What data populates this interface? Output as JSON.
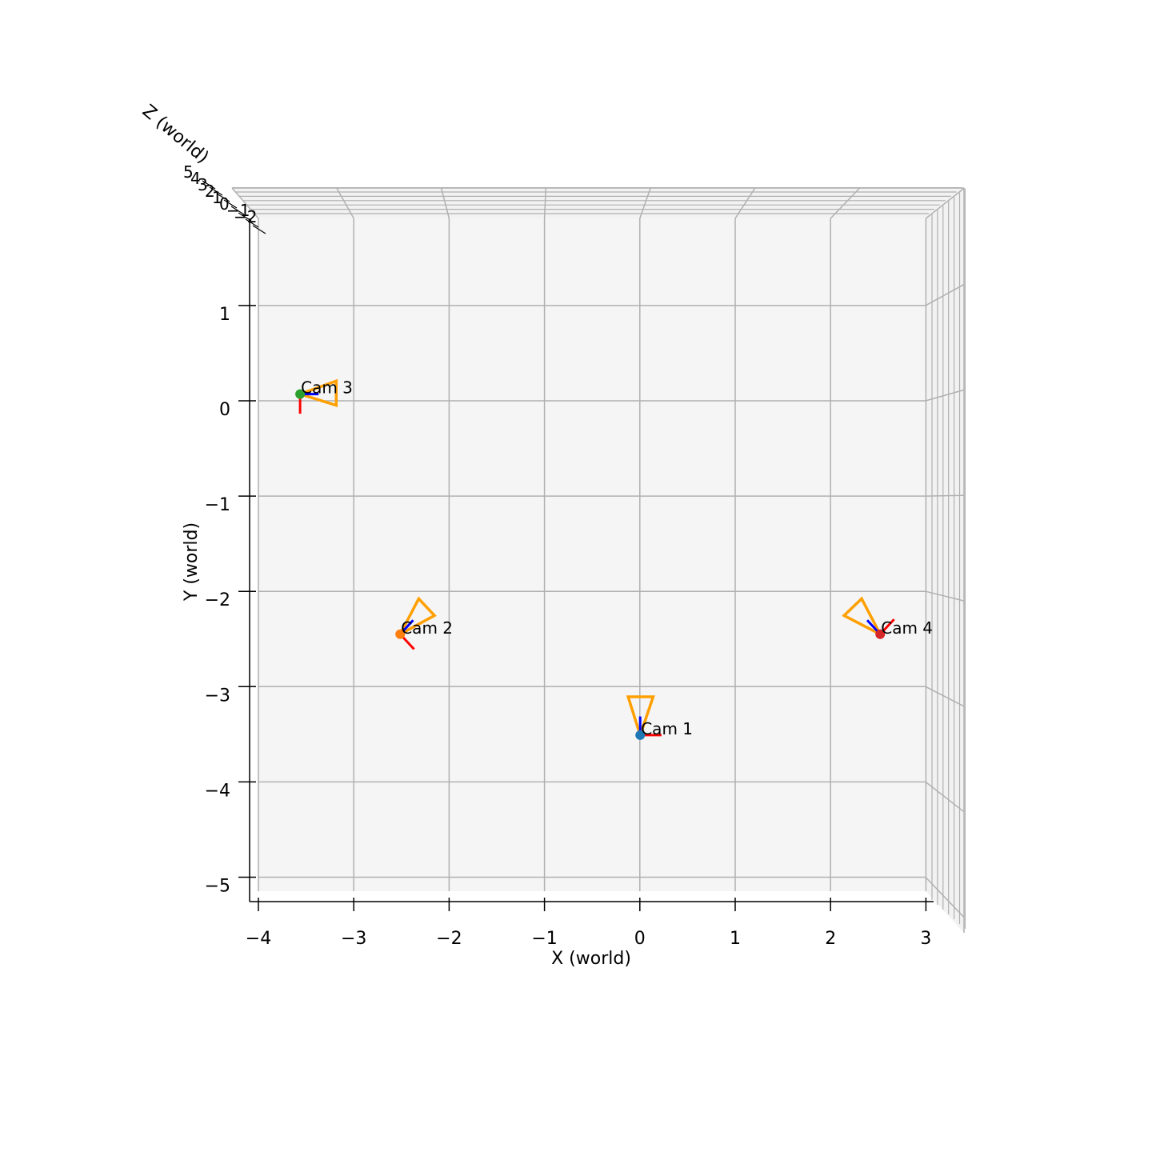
{
  "chart_data": {
    "type": "scatter",
    "title": "",
    "xlabel": "X (world)",
    "ylabel": "Y (world)",
    "zlabel": "Z (world)",
    "xlim": [
      -4.1,
      3.1
    ],
    "ylim": [
      -5.25,
      1.95
    ],
    "xticks": [
      "−4",
      "−3",
      "−2",
      "−1",
      "0",
      "1",
      "2",
      "3"
    ],
    "yticks": [
      "−5",
      "−4",
      "−3",
      "−2",
      "−1",
      "0",
      "1"
    ],
    "zticks": [
      "5",
      "4",
      "3",
      "2",
      "1",
      "0",
      "−1",
      "−2"
    ],
    "grid": true,
    "view": "top-down (looking along −Z)",
    "frustum_color": "#ff9f00",
    "axis_colors": {
      "x_axis": "#ff0000",
      "z_axis": "#0000ff"
    },
    "cameras": [
      {
        "label": "Cam 1",
        "color": "#1f77b4",
        "x": 0.02,
        "y": -3.58,
        "frustum": [
          [
            0.02,
            -3.58
          ],
          [
            -0.11,
            -3.17
          ],
          [
            0.16,
            -3.17
          ]
        ],
        "x_axis_end": [
          0.25,
          -3.58
        ],
        "z_axis_end": [
          0.02,
          -3.38
        ]
      },
      {
        "label": "Cam 2",
        "color": "#ff7f0e",
        "x": -2.57,
        "y": -2.5,
        "frustum": [
          [
            -2.57,
            -2.5
          ],
          [
            -2.37,
            -2.12
          ],
          [
            -2.2,
            -2.3
          ]
        ],
        "x_axis_end": [
          -2.42,
          -2.66
        ],
        "z_axis_end": [
          -2.43,
          -2.35
        ]
      },
      {
        "label": "Cam 3",
        "color": "#2ca02c",
        "x": -3.65,
        "y": 0.07,
        "frustum": [
          [
            -3.65,
            0.07
          ],
          [
            -3.26,
            0.21
          ],
          [
            -3.26,
            -0.05
          ]
        ],
        "x_axis_end": [
          -3.65,
          -0.14
        ],
        "z_axis_end": [
          -3.45,
          0.07
        ]
      },
      {
        "label": "Cam 4",
        "color": "#d62728",
        "x": 2.61,
        "y": -2.5,
        "frustum": [
          [
            2.61,
            -2.5
          ],
          [
            2.41,
            -2.12
          ],
          [
            2.22,
            -2.3
          ]
        ],
        "x_axis_end": [
          2.76,
          -2.34
        ],
        "z_axis_end": [
          2.47,
          -2.35
        ]
      }
    ]
  }
}
